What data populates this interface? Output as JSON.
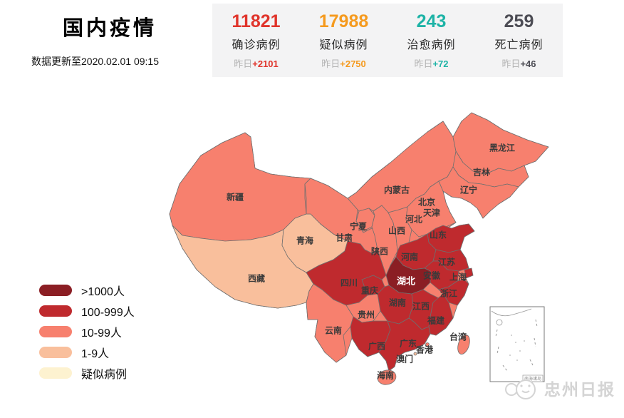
{
  "page": {
    "title": "国内疫情",
    "updated": "数据更新至2020.02.01 09:15"
  },
  "stats": [
    {
      "value": "11821",
      "label": "确诊病例",
      "yesterday_label": "昨日",
      "delta": "+2101",
      "color": "#e0342b"
    },
    {
      "value": "17988",
      "label": "疑似病例",
      "yesterday_label": "昨日",
      "delta": "+2750",
      "color": "#f59a1e"
    },
    {
      "value": "243",
      "label": "治愈病例",
      "yesterday_label": "昨日",
      "delta": "+72",
      "color": "#1db3a6"
    },
    {
      "value": "259",
      "label": "死亡病例",
      "yesterday_label": "昨日",
      "delta": "+46",
      "color": "#4c4c54"
    }
  ],
  "legend": {
    "items": [
      {
        "label": ">1000人",
        "color": "#8b1e24"
      },
      {
        "label": "100-999人",
        "color": "#bf2a2e"
      },
      {
        "label": "10-99人",
        "color": "#f7806e"
      },
      {
        "label": "1-9人",
        "color": "#f9bf9c"
      },
      {
        "label": "疑似病例",
        "color": "#fdf2d0"
      }
    ]
  },
  "chart_data": {
    "type": "heatmap",
    "subtype": "china-province-choropleth",
    "title": "国内疫情",
    "subtitle": "数据更新至2020.02.01 09:15",
    "legend_categories": [
      ">1000人",
      "100-999人",
      "10-99人",
      "1-9人",
      "疑似病例"
    ],
    "summary": [
      {
        "label": "确诊病例",
        "value": 11821,
        "yesterday_change": 2101
      },
      {
        "label": "疑似病例",
        "value": 17988,
        "yesterday_change": 2750
      },
      {
        "label": "治愈病例",
        "value": 243,
        "yesterday_change": 72
      },
      {
        "label": "死亡病例",
        "value": 259,
        "yesterday_change": 46
      }
    ],
    "regions": [
      {
        "name": "新疆",
        "level": "10-99"
      },
      {
        "name": "青海",
        "level": "1-9"
      },
      {
        "name": "西藏",
        "level": "1-9"
      },
      {
        "name": "甘肃",
        "level": "10-99"
      },
      {
        "name": "宁夏",
        "level": "10-99"
      },
      {
        "name": "内蒙古",
        "level": "10-99"
      },
      {
        "name": "陕西",
        "level": "10-99"
      },
      {
        "name": "山西",
        "level": "10-99"
      },
      {
        "name": "河北",
        "level": "10-99"
      },
      {
        "name": "北京",
        "level": "100-999"
      },
      {
        "name": "天津",
        "level": "10-99"
      },
      {
        "name": "山东",
        "level": "100-999"
      },
      {
        "name": "河南",
        "level": "100-999"
      },
      {
        "name": "江苏",
        "level": "100-999"
      },
      {
        "name": "安徽",
        "level": "100-999"
      },
      {
        "name": "上海",
        "level": "100-999"
      },
      {
        "name": "湖北",
        "level": ">1000"
      },
      {
        "name": "浙江",
        "level": "100-999"
      },
      {
        "name": "四川",
        "level": "100-999"
      },
      {
        "name": "重庆",
        "level": "100-999"
      },
      {
        "name": "湖南",
        "level": "100-999"
      },
      {
        "name": "江西",
        "level": "100-999"
      },
      {
        "name": "贵州",
        "level": "10-99"
      },
      {
        "name": "福建",
        "level": "100-999"
      },
      {
        "name": "云南",
        "level": "10-99"
      },
      {
        "name": "广西",
        "level": "100-999"
      },
      {
        "name": "广东",
        "level": "100-999"
      },
      {
        "name": "香港",
        "level": "10-99"
      },
      {
        "name": "澳门",
        "level": "1-9"
      },
      {
        "name": "海南",
        "level": "10-99"
      },
      {
        "name": "台湾",
        "level": "10-99"
      },
      {
        "name": "黑龙江",
        "level": "10-99"
      },
      {
        "name": "吉林",
        "level": "10-99"
      },
      {
        "name": "辽宁",
        "level": "10-99"
      }
    ]
  },
  "inset": {
    "caption": "南海诸岛"
  },
  "watermark": {
    "text": "忠州日报"
  }
}
